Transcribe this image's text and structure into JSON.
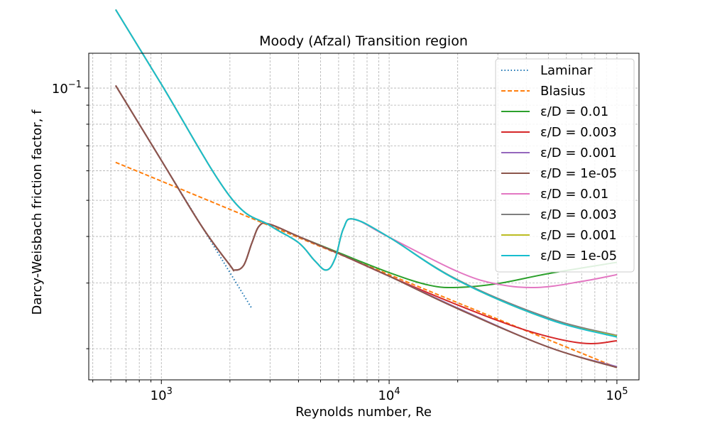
{
  "chart_data": {
    "type": "line",
    "title": "Moody (Afzal) Transition region",
    "xlabel": "Reynolds number, Re",
    "ylabel": "Darcy-Weisbach friction factor, f",
    "xscale": "log",
    "yscale": "log",
    "xlim": [
      480,
      125000
    ],
    "ylim": [
      0.0165,
      0.124
    ],
    "grid": "major and minor, dashed gray",
    "legend_position": "top-right",
    "x_ticks": [
      {
        "value": 1000,
        "base": "10",
        "exp": "3"
      },
      {
        "value": 10000,
        "base": "10",
        "exp": "4"
      },
      {
        "value": 100000,
        "base": "10",
        "exp": "5"
      }
    ],
    "y_ticks": [
      {
        "value": 0.1,
        "base": "10",
        "exp": "−1"
      }
    ],
    "series": [
      {
        "name": "Laminar",
        "color": "#1f77b4",
        "style": "dotted",
        "points": [
          [
            630,
            0.1016
          ],
          [
            1000,
            0.064
          ],
          [
            1500,
            0.0427
          ],
          [
            2000,
            0.032
          ],
          [
            2500,
            0.0256
          ]
        ]
      },
      {
        "name": "Blasius",
        "color": "#ff7f0e",
        "style": "dashed",
        "points": [
          [
            630,
            0.0632
          ],
          [
            1000,
            0.0563
          ],
          [
            3000,
            0.0427
          ],
          [
            10000,
            0.0316
          ],
          [
            30000,
            0.024
          ],
          [
            100000,
            0.0178
          ]
        ]
      },
      {
        "name": "ε/D = 0.01",
        "color": "#2ca02c",
        "style": "solid",
        "points": [
          [
            630,
            0.1016
          ],
          [
            1000,
            0.064
          ],
          [
            1500,
            0.0427
          ],
          [
            2000,
            0.0335
          ],
          [
            2100,
            0.0325
          ],
          [
            2300,
            0.0335
          ],
          [
            2500,
            0.0385
          ],
          [
            2700,
            0.0428
          ],
          [
            3000,
            0.0431
          ],
          [
            4000,
            0.04
          ],
          [
            6000,
            0.0362
          ],
          [
            10000,
            0.032
          ],
          [
            15000,
            0.0296
          ],
          [
            20000,
            0.0292
          ],
          [
            30000,
            0.0299
          ],
          [
            50000,
            0.0318
          ],
          [
            100000,
            0.0341
          ]
        ]
      },
      {
        "name": "ε/D = 0.003",
        "color": "#d62728",
        "style": "solid",
        "points": [
          [
            630,
            0.1016
          ],
          [
            1000,
            0.064
          ],
          [
            1500,
            0.0427
          ],
          [
            2000,
            0.0335
          ],
          [
            2100,
            0.0325
          ],
          [
            2300,
            0.0335
          ],
          [
            2500,
            0.0385
          ],
          [
            2700,
            0.0428
          ],
          [
            3000,
            0.0431
          ],
          [
            4000,
            0.04
          ],
          [
            6000,
            0.036
          ],
          [
            10000,
            0.0313
          ],
          [
            20000,
            0.0262
          ],
          [
            40000,
            0.0224
          ],
          [
            70000,
            0.0207
          ],
          [
            100000,
            0.021
          ]
        ]
      },
      {
        "name": "ε/D = 0.001",
        "color": "#9467bd",
        "style": "solid",
        "points": [
          [
            630,
            0.1016
          ],
          [
            1000,
            0.064
          ],
          [
            1500,
            0.0427
          ],
          [
            2000,
            0.0335
          ],
          [
            2100,
            0.0325
          ],
          [
            2300,
            0.0335
          ],
          [
            2500,
            0.0385
          ],
          [
            2700,
            0.0428
          ],
          [
            3000,
            0.0431
          ],
          [
            4000,
            0.04
          ],
          [
            6000,
            0.036
          ],
          [
            10000,
            0.0313
          ],
          [
            20000,
            0.0257
          ],
          [
            50000,
            0.0202
          ],
          [
            100000,
            0.0179
          ]
        ]
      },
      {
        "name": "ε/D = 1e-05",
        "color": "#8c564b",
        "style": "solid",
        "points": [
          [
            630,
            0.1016
          ],
          [
            1000,
            0.064
          ],
          [
            1500,
            0.0427
          ],
          [
            2000,
            0.0335
          ],
          [
            2100,
            0.0325
          ],
          [
            2300,
            0.0335
          ],
          [
            2500,
            0.0385
          ],
          [
            2700,
            0.0428
          ],
          [
            3000,
            0.0431
          ],
          [
            4000,
            0.04
          ],
          [
            6000,
            0.036
          ],
          [
            10000,
            0.0313
          ],
          [
            20000,
            0.0256
          ],
          [
            50000,
            0.0202
          ],
          [
            100000,
            0.0178
          ]
        ]
      },
      {
        "name": "ε/D = 0.01",
        "color": "#e377c2",
        "style": "solid",
        "points": [
          [
            630,
            0.1624
          ],
          [
            1000,
            0.1024
          ],
          [
            2000,
            0.0512
          ],
          [
            3000,
            0.0428
          ],
          [
            4000,
            0.0385
          ],
          [
            4700,
            0.0345
          ],
          [
            5300,
            0.0325
          ],
          [
            5800,
            0.035
          ],
          [
            6300,
            0.042
          ],
          [
            7000,
            0.0445
          ],
          [
            10000,
            0.0398
          ],
          [
            20000,
            0.0322
          ],
          [
            30000,
            0.0298
          ],
          [
            45000,
            0.0292
          ],
          [
            70000,
            0.0303
          ],
          [
            100000,
            0.0316
          ]
        ]
      },
      {
        "name": "ε/D = 0.003",
        "color": "#7f7f7f",
        "style": "solid",
        "points": [
          [
            630,
            0.1624
          ],
          [
            1000,
            0.1024
          ],
          [
            2000,
            0.0512
          ],
          [
            3000,
            0.0428
          ],
          [
            4000,
            0.0385
          ],
          [
            4700,
            0.0345
          ],
          [
            5300,
            0.0325
          ],
          [
            5800,
            0.035
          ],
          [
            6300,
            0.042
          ],
          [
            7000,
            0.0445
          ],
          [
            10000,
            0.0398
          ],
          [
            20000,
            0.0306
          ],
          [
            50000,
            0.0242
          ],
          [
            100000,
            0.0217
          ]
        ]
      },
      {
        "name": "ε/D = 0.001",
        "color": "#bcbd22",
        "style": "solid",
        "points": [
          [
            630,
            0.1624
          ],
          [
            1000,
            0.1024
          ],
          [
            2000,
            0.0512
          ],
          [
            3000,
            0.0428
          ],
          [
            4000,
            0.0385
          ],
          [
            4700,
            0.0345
          ],
          [
            5300,
            0.0325
          ],
          [
            5800,
            0.035
          ],
          [
            6300,
            0.042
          ],
          [
            7000,
            0.0445
          ],
          [
            10000,
            0.0398
          ],
          [
            20000,
            0.0305
          ],
          [
            50000,
            0.024
          ],
          [
            100000,
            0.0216
          ]
        ]
      },
      {
        "name": "ε/D = 1e-05",
        "color": "#17becf",
        "style": "solid",
        "points": [
          [
            630,
            0.1624
          ],
          [
            1000,
            0.1024
          ],
          [
            2000,
            0.0512
          ],
          [
            3000,
            0.0428
          ],
          [
            4000,
            0.0385
          ],
          [
            4700,
            0.0345
          ],
          [
            5300,
            0.0325
          ],
          [
            5800,
            0.035
          ],
          [
            6300,
            0.042
          ],
          [
            7000,
            0.0445
          ],
          [
            10000,
            0.0398
          ],
          [
            20000,
            0.0305
          ],
          [
            50000,
            0.024
          ],
          [
            100000,
            0.0215
          ]
        ]
      }
    ]
  }
}
